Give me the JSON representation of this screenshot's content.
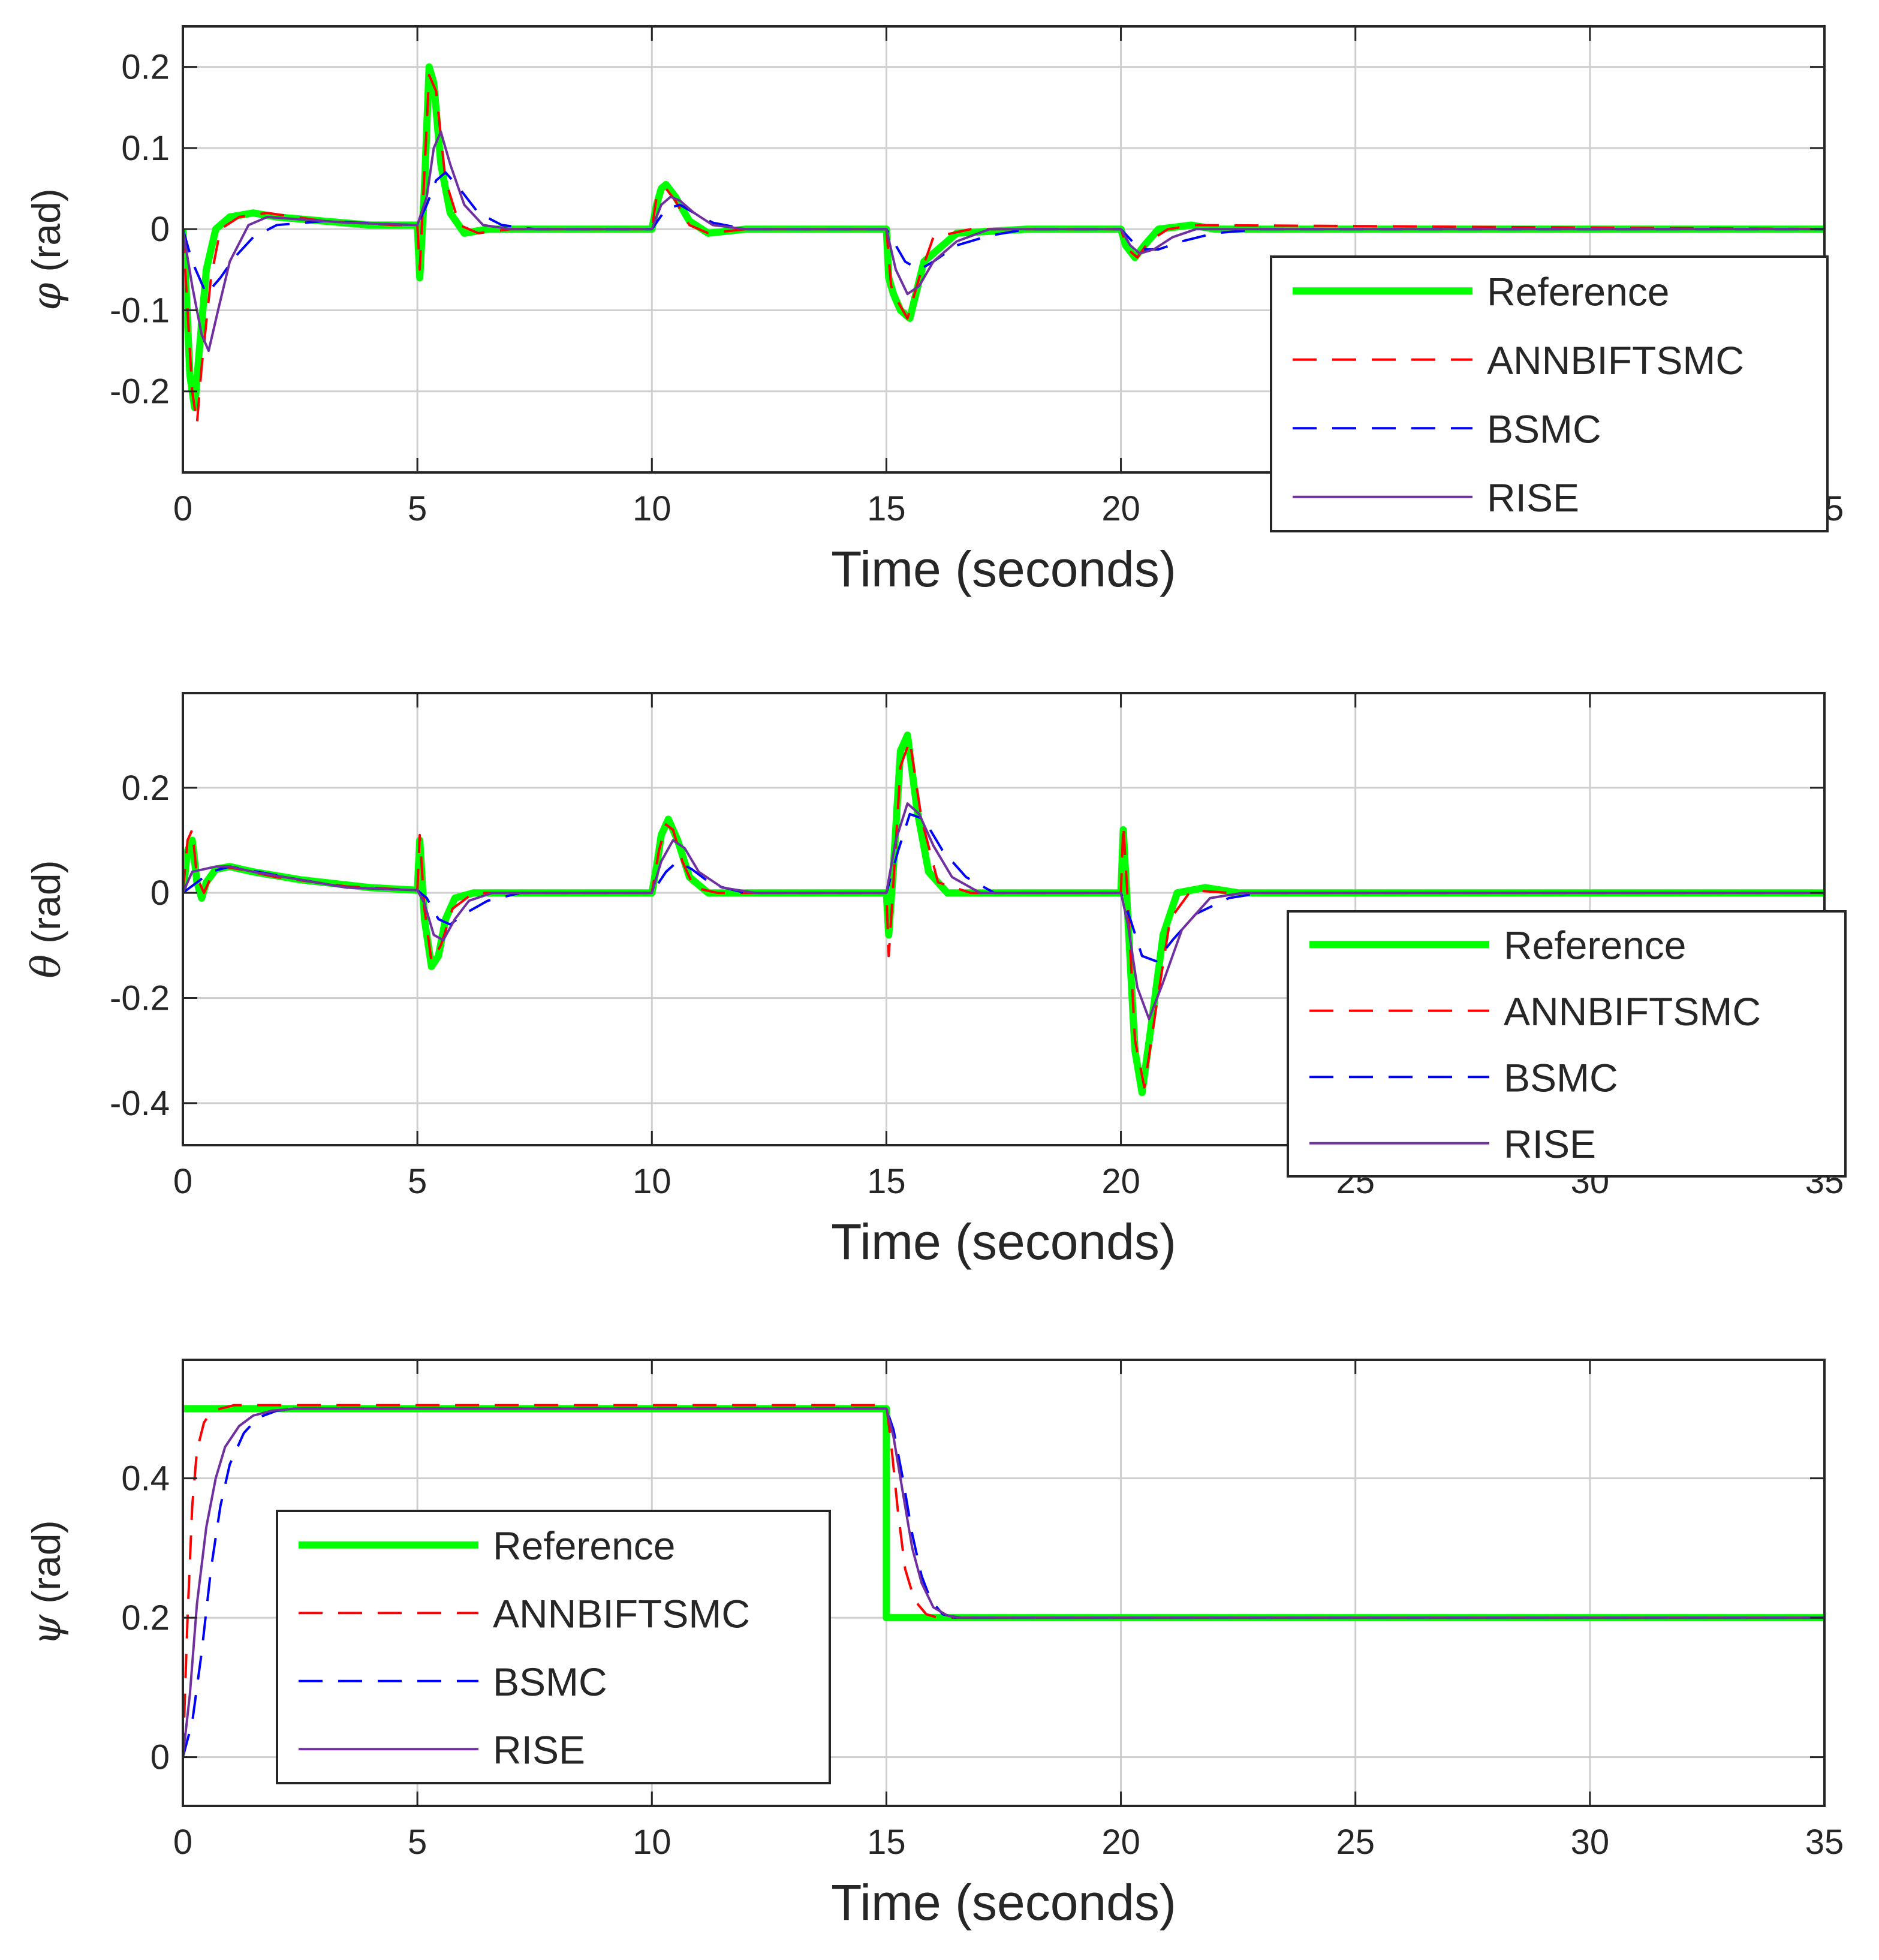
{
  "chart_data": [
    {
      "type": "line",
      "id": "phi",
      "ylabel_symbol": "φ",
      "ylabel_unit": "(rad)",
      "xlabel": "Time (seconds)",
      "xlim": [
        0,
        35
      ],
      "ylim": [
        -0.3,
        0.25
      ],
      "xticks": [
        0,
        5,
        10,
        15,
        20,
        25,
        30,
        35
      ],
      "xtick_labels": [
        "0",
        "5",
        "10",
        "15",
        "20",
        "25",
        "30",
        "35"
      ],
      "yticks": [
        -0.2,
        -0.1,
        0,
        0.1,
        0.2
      ],
      "ytick_labels": [
        "-0.2",
        "-0.1",
        "0",
        "0.1",
        "0.2"
      ],
      "grid": true,
      "legend_position": "lower-right",
      "legend": [
        "Reference",
        "ANNBIFTSMC",
        "BSMC",
        "RISE"
      ],
      "series": [
        {
          "name": "Reference",
          "color": "#00ff00",
          "style": "solid-thick",
          "x": [
            0,
            0.05,
            0.15,
            0.25,
            0.35,
            0.5,
            0.7,
            1.0,
            1.5,
            2.0,
            3.0,
            4.0,
            5.0,
            5.05,
            5.15,
            5.25,
            5.35,
            5.5,
            5.7,
            6.0,
            6.5,
            7.5,
            10.0,
            10.1,
            10.2,
            10.3,
            10.5,
            10.8,
            11.2,
            12.0,
            15.0,
            15.05,
            15.15,
            15.3,
            15.5,
            15.8,
            16.5,
            18.0,
            20.0,
            20.1,
            20.3,
            20.5,
            20.8,
            21.5,
            22.0,
            35.0
          ],
          "y": [
            0,
            -0.05,
            -0.18,
            -0.22,
            -0.15,
            -0.05,
            0.0,
            0.015,
            0.02,
            0.015,
            0.01,
            0.005,
            0.005,
            -0.06,
            0.05,
            0.2,
            0.18,
            0.08,
            0.02,
            -0.005,
            0.0,
            0.0,
            0.0,
            0.03,
            0.05,
            0.055,
            0.04,
            0.01,
            -0.005,
            0.0,
            0.0,
            -0.06,
            -0.08,
            -0.1,
            -0.11,
            -0.04,
            -0.005,
            0.0,
            0.0,
            -0.02,
            -0.035,
            -0.02,
            0.0,
            0.005,
            0.0,
            0.0
          ]
        },
        {
          "name": "ANNBIFTSMC",
          "color": "#ff0000",
          "style": "dashed",
          "x": [
            0,
            0.1,
            0.2,
            0.3,
            0.4,
            0.6,
            0.8,
            1.2,
            1.8,
            3.0,
            4.5,
            5.0,
            5.05,
            5.15,
            5.25,
            5.4,
            5.6,
            5.9,
            6.3,
            7.0,
            10.0,
            10.1,
            10.3,
            10.5,
            10.8,
            11.2,
            12.0,
            15.0,
            15.1,
            15.25,
            15.45,
            15.7,
            16.0,
            16.8,
            20.0,
            20.15,
            20.35,
            20.6,
            21.0,
            21.6,
            35.0
          ],
          "y": [
            0,
            -0.1,
            -0.2,
            -0.24,
            -0.17,
            -0.06,
            0.0,
            0.015,
            0.02,
            0.01,
            0.005,
            0.005,
            -0.05,
            0.07,
            0.19,
            0.17,
            0.06,
            0.005,
            -0.005,
            0.0,
            0.0,
            0.04,
            0.05,
            0.035,
            0.005,
            -0.005,
            0.0,
            0.0,
            -0.07,
            -0.09,
            -0.11,
            -0.06,
            -0.01,
            0.0,
            0.0,
            -0.025,
            -0.035,
            -0.015,
            0.0,
            0.005,
            0.0
          ]
        },
        {
          "name": "BSMC",
          "color": "#0000ff",
          "style": "dashed",
          "x": [
            0,
            0.2,
            0.5,
            0.8,
            1.1,
            1.5,
            2.0,
            3.0,
            4.5,
            5.0,
            5.2,
            5.4,
            5.6,
            5.9,
            6.3,
            6.8,
            7.5,
            10.0,
            10.3,
            10.6,
            10.9,
            11.3,
            12.0,
            15.0,
            15.4,
            15.7,
            16.0,
            16.5,
            17.2,
            18.0,
            20.0,
            20.4,
            20.8,
            21.3,
            22.0,
            23.0,
            35.0
          ],
          "y": [
            0,
            -0.04,
            -0.08,
            -0.06,
            -0.035,
            -0.01,
            0.005,
            0.01,
            0.006,
            0.005,
            0.03,
            0.06,
            0.07,
            0.05,
            0.02,
            0.005,
            0.0,
            0.0,
            0.025,
            0.03,
            0.02,
            0.008,
            0.0,
            0.0,
            -0.04,
            -0.05,
            -0.04,
            -0.02,
            -0.008,
            0.0,
            0.0,
            -0.025,
            -0.025,
            -0.015,
            -0.005,
            0.0,
            0.0
          ]
        },
        {
          "name": "RISE",
          "color": "#7030a0",
          "style": "solid",
          "x": [
            0,
            0.2,
            0.4,
            0.55,
            0.75,
            1.0,
            1.4,
            1.8,
            2.5,
            3.5,
            5.0,
            5.2,
            5.35,
            5.5,
            5.7,
            6.0,
            6.4,
            7.0,
            10.0,
            10.2,
            10.4,
            10.6,
            10.9,
            11.3,
            12.0,
            15.0,
            15.2,
            15.45,
            15.7,
            16.0,
            16.5,
            17.2,
            20.0,
            20.2,
            20.4,
            20.7,
            21.1,
            21.6,
            22.5,
            35.0
          ],
          "y": [
            0,
            -0.07,
            -0.13,
            -0.15,
            -0.1,
            -0.04,
            0.005,
            0.015,
            0.012,
            0.008,
            0.005,
            0.04,
            0.1,
            0.12,
            0.08,
            0.03,
            0.005,
            0.0,
            0.0,
            0.03,
            0.04,
            0.035,
            0.02,
            0.005,
            0.0,
            0.0,
            -0.05,
            -0.08,
            -0.07,
            -0.04,
            -0.015,
            0.0,
            0.0,
            -0.02,
            -0.03,
            -0.025,
            -0.01,
            0.0,
            0.0,
            0.0
          ]
        }
      ]
    },
    {
      "type": "line",
      "id": "theta",
      "ylabel_symbol": "θ",
      "ylabel_unit": "(rad)",
      "xlabel": "Time (seconds)",
      "xlim": [
        0,
        35
      ],
      "ylim": [
        -0.48,
        0.38
      ],
      "xticks": [
        0,
        5,
        10,
        15,
        20,
        25,
        30,
        35
      ],
      "xtick_labels": [
        "0",
        "5",
        "10",
        "15",
        "20",
        "25",
        "30",
        "35"
      ],
      "yticks": [
        -0.4,
        -0.2,
        0,
        0.2
      ],
      "ytick_labels": [
        "-0.4",
        "-0.2",
        "0",
        "0.2"
      ],
      "grid": true,
      "legend_position": "lower-right",
      "legend": [
        "Reference",
        "ANNBIFTSMC",
        "BSMC",
        "RISE"
      ],
      "series": [
        {
          "name": "Reference",
          "color": "#00ff00",
          "style": "solid-thick",
          "x": [
            0,
            0.1,
            0.2,
            0.3,
            0.4,
            0.5,
            0.7,
            1.0,
            1.5,
            2.5,
            4.0,
            5.0,
            5.05,
            5.15,
            5.3,
            5.45,
            5.6,
            5.8,
            6.2,
            7.0,
            10.0,
            10.1,
            10.2,
            10.35,
            10.55,
            10.8,
            11.2,
            12.0,
            15.0,
            15.05,
            15.15,
            15.3,
            15.45,
            15.65,
            15.9,
            16.3,
            17.0,
            20.0,
            20.05,
            20.15,
            20.3,
            20.45,
            20.65,
            20.9,
            21.2,
            21.8,
            22.5,
            35.0
          ],
          "y": [
            0,
            0.08,
            0.1,
            0.02,
            -0.01,
            0.02,
            0.045,
            0.05,
            0.04,
            0.025,
            0.01,
            0.005,
            0.1,
            -0.05,
            -0.14,
            -0.12,
            -0.05,
            -0.01,
            0.0,
            0.0,
            0.0,
            0.05,
            0.11,
            0.14,
            0.1,
            0.03,
            0.0,
            0.0,
            0.0,
            -0.08,
            0.05,
            0.27,
            0.3,
            0.16,
            0.04,
            0.0,
            0.0,
            0.0,
            0.12,
            -0.05,
            -0.3,
            -0.38,
            -0.25,
            -0.08,
            0.0,
            0.01,
            0.0,
            0.0
          ]
        },
        {
          "name": "ANNBIFTSMC",
          "color": "#ff0000",
          "style": "dashed",
          "x": [
            0,
            0.1,
            0.2,
            0.3,
            0.45,
            0.6,
            0.85,
            1.2,
            2.0,
            3.5,
            5.0,
            5.05,
            5.15,
            5.3,
            5.5,
            5.75,
            6.2,
            7.0,
            10.0,
            10.15,
            10.3,
            10.45,
            10.65,
            10.9,
            11.4,
            15.0,
            15.05,
            15.15,
            15.3,
            15.5,
            15.75,
            16.1,
            16.8,
            20.0,
            20.05,
            20.15,
            20.3,
            20.5,
            20.75,
            21.05,
            21.5,
            22.3,
            35.0
          ],
          "y": [
            0,
            0.1,
            0.12,
            0.03,
            0.0,
            0.03,
            0.05,
            0.045,
            0.03,
            0.012,
            0.005,
            0.11,
            -0.03,
            -0.13,
            -0.1,
            -0.03,
            0.0,
            0.0,
            0.0,
            0.08,
            0.13,
            0.12,
            0.06,
            0.01,
            0.0,
            0.0,
            -0.12,
            0.02,
            0.24,
            0.29,
            0.14,
            0.02,
            0.0,
            0.0,
            0.13,
            -0.02,
            -0.28,
            -0.37,
            -0.22,
            -0.05,
            0.005,
            0.0,
            0.0
          ]
        },
        {
          "name": "BSMC",
          "color": "#0000ff",
          "style": "dashed",
          "x": [
            0,
            0.3,
            0.6,
            1.0,
            1.6,
            2.5,
            3.5,
            5.0,
            5.2,
            5.45,
            5.7,
            6.0,
            6.5,
            7.2,
            10.0,
            10.3,
            10.55,
            10.85,
            11.3,
            12.0,
            15.0,
            15.25,
            15.5,
            15.8,
            16.2,
            16.7,
            17.3,
            20.0,
            20.2,
            20.45,
            20.75,
            21.1,
            21.6,
            22.3,
            23.0,
            35.0
          ],
          "y": [
            0,
            0.02,
            0.04,
            0.05,
            0.04,
            0.025,
            0.01,
            0.005,
            -0.01,
            -0.05,
            -0.06,
            -0.04,
            -0.015,
            0.0,
            0.0,
            0.04,
            0.06,
            0.045,
            0.015,
            0.0,
            0.0,
            0.08,
            0.15,
            0.14,
            0.08,
            0.03,
            0.0,
            0.0,
            -0.05,
            -0.12,
            -0.13,
            -0.09,
            -0.04,
            -0.01,
            0.0,
            0.0
          ]
        },
        {
          "name": "RISE",
          "color": "#7030a0",
          "style": "solid",
          "x": [
            0,
            0.2,
            0.45,
            0.7,
            1.0,
            1.5,
            2.5,
            3.5,
            5.0,
            5.15,
            5.35,
            5.55,
            5.8,
            6.1,
            6.6,
            7.2,
            10.0,
            10.2,
            10.45,
            10.7,
            11.0,
            11.5,
            12.2,
            15.0,
            15.2,
            15.45,
            15.7,
            16.0,
            16.4,
            17.0,
            20.0,
            20.15,
            20.35,
            20.6,
            20.9,
            21.3,
            21.9,
            22.6,
            35.0
          ],
          "y": [
            0,
            0.04,
            0.045,
            0.05,
            0.05,
            0.04,
            0.025,
            0.01,
            0.005,
            -0.02,
            -0.08,
            -0.09,
            -0.05,
            -0.015,
            0.0,
            0.0,
            0.0,
            0.06,
            0.1,
            0.085,
            0.04,
            0.01,
            0.0,
            0.0,
            0.1,
            0.17,
            0.15,
            0.09,
            0.03,
            0.0,
            0.0,
            -0.06,
            -0.18,
            -0.24,
            -0.17,
            -0.07,
            -0.01,
            0.0,
            0.0
          ]
        }
      ]
    },
    {
      "type": "line",
      "id": "psi",
      "ylabel_symbol": "ψ",
      "ylabel_unit": "(rad)",
      "xlabel": "Time (seconds)",
      "xlim": [
        0,
        35
      ],
      "ylim": [
        -0.07,
        0.57
      ],
      "xticks": [
        0,
        5,
        10,
        15,
        20,
        25,
        30,
        35
      ],
      "xtick_labels": [
        "0",
        "5",
        "10",
        "15",
        "20",
        "25",
        "30",
        "35"
      ],
      "yticks": [
        0,
        0.2,
        0.4
      ],
      "ytick_labels": [
        "0",
        "0.2",
        "0.4"
      ],
      "grid": true,
      "legend_position": "lower-left",
      "legend": [
        "Reference",
        "ANNBIFTSMC",
        "BSMC",
        "RISE"
      ],
      "series": [
        {
          "name": "Reference",
          "color": "#00ff00",
          "style": "solid-thick",
          "x": [
            0,
            15.0,
            15.0,
            35.0
          ],
          "y": [
            0.5,
            0.5,
            0.2,
            0.2
          ]
        },
        {
          "name": "ANNBIFTSMC",
          "color": "#ff0000",
          "style": "dashed",
          "x": [
            0,
            0.1,
            0.2,
            0.3,
            0.45,
            0.6,
            0.8,
            1.1,
            1.5,
            2.2,
            3.0,
            15.0,
            15.1,
            15.25,
            15.4,
            15.6,
            15.85,
            16.1,
            16.4,
            35.0
          ],
          "y": [
            0,
            0.2,
            0.36,
            0.44,
            0.48,
            0.495,
            0.5,
            0.505,
            0.505,
            0.505,
            0.505,
            0.505,
            0.45,
            0.35,
            0.27,
            0.225,
            0.205,
            0.2,
            0.2,
            0.2
          ]
        },
        {
          "name": "BSMC",
          "color": "#0000ff",
          "style": "dashed",
          "x": [
            0,
            0.2,
            0.4,
            0.6,
            0.8,
            1.0,
            1.3,
            1.6,
            2.0,
            2.5,
            3.0,
            15.0,
            15.15,
            15.35,
            15.55,
            15.75,
            15.95,
            16.2,
            16.5,
            35.0
          ],
          "y": [
            0,
            0.05,
            0.15,
            0.27,
            0.36,
            0.42,
            0.465,
            0.487,
            0.497,
            0.5,
            0.5,
            0.5,
            0.47,
            0.4,
            0.32,
            0.26,
            0.225,
            0.205,
            0.2,
            0.2
          ]
        },
        {
          "name": "RISE",
          "color": "#7030a0",
          "style": "solid",
          "x": [
            0,
            0.15,
            0.3,
            0.5,
            0.7,
            0.9,
            1.2,
            1.5,
            1.9,
            2.4,
            3.0,
            15.0,
            15.15,
            15.35,
            15.55,
            15.75,
            16.0,
            16.3,
            16.6,
            35.0
          ],
          "y": [
            0,
            0.09,
            0.22,
            0.33,
            0.4,
            0.445,
            0.475,
            0.49,
            0.497,
            0.5,
            0.5,
            0.5,
            0.46,
            0.38,
            0.3,
            0.25,
            0.215,
            0.203,
            0.2,
            0.2
          ]
        }
      ]
    }
  ],
  "legend_styles": {
    "Reference": {
      "color": "#00ff00",
      "dash": "",
      "width": 12
    },
    "ANNBIFTSMC": {
      "color": "#ff0000",
      "dash": "40,26",
      "width": 4
    },
    "BSMC": {
      "color": "#0000ff",
      "dash": "40,26",
      "width": 4
    },
    "RISE": {
      "color": "#7030a0",
      "dash": "",
      "width": 4
    }
  }
}
